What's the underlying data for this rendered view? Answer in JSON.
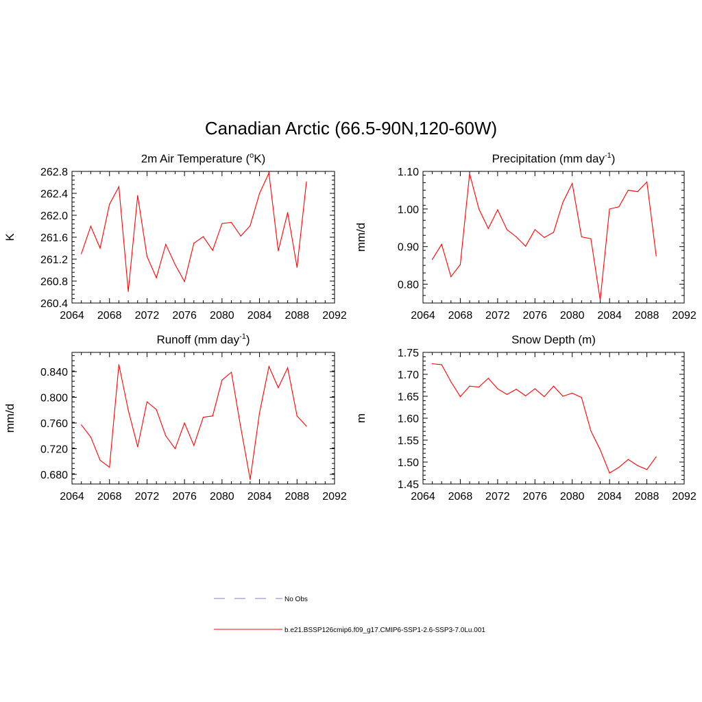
{
  "figure": {
    "title": "Canadian Arctic (66.5-90N,120-60W)"
  },
  "legend": {
    "items": [
      {
        "label": "No Obs",
        "color": "#9999dd",
        "style": "dashed"
      },
      {
        "label": "b.e21.BSSP126cmip6.f09_g17.CMIP6-SSP1-2.6-SSP3-7.0Lu.001",
        "color": "#ff0000",
        "style": "solid"
      }
    ]
  },
  "chart_data": [
    {
      "type": "line",
      "title": "2m Air Temperature (",
      "title_super": "o",
      "title_after": "K)",
      "title_super2": "",
      "title_end": "",
      "ylabel": "K",
      "xlim": [
        2064,
        2092
      ],
      "ylim": [
        260.4,
        262.8
      ],
      "xticks": [
        "2064",
        "2068",
        "2072",
        "2076",
        "2080",
        "2084",
        "2088",
        "2092"
      ],
      "yticks": [
        "260.4",
        "260.8",
        "261.2",
        "261.6",
        "262.0",
        "262.4",
        "262.8"
      ],
      "ytick_values": [
        260.4,
        260.8,
        261.2,
        261.6,
        262.0,
        262.4,
        262.8
      ],
      "series_color": "#ff0000",
      "x": [
        2065,
        2066,
        2067,
        2068,
        2069,
        2070,
        2071,
        2072,
        2073,
        2074,
        2075,
        2076,
        2077,
        2078,
        2079,
        2080,
        2081,
        2082,
        2083,
        2084,
        2085,
        2086,
        2087,
        2088,
        2089
      ],
      "y": [
        261.3,
        261.8,
        261.4,
        262.2,
        262.52,
        260.61,
        262.36,
        261.25,
        260.86,
        261.47,
        261.1,
        260.79,
        261.49,
        261.61,
        261.36,
        261.85,
        261.87,
        261.62,
        261.81,
        262.4,
        262.77,
        261.35,
        262.05,
        261.05,
        262.61
      ]
    },
    {
      "type": "line",
      "title": "Precipitation (mm day",
      "title_super": "-1",
      "title_after": ")",
      "ylabel": "mm/d",
      "xlim": [
        2064,
        2092
      ],
      "ylim": [
        0.75,
        1.1
      ],
      "xticks": [
        "2064",
        "2068",
        "2072",
        "2076",
        "2080",
        "2084",
        "2088",
        "2092"
      ],
      "yticks": [
        "0.80",
        "0.90",
        "1.00",
        "1.10"
      ],
      "ytick_values": [
        0.8,
        0.9,
        1.0,
        1.1
      ],
      "series_color": "#ff0000",
      "x": [
        2065,
        2066,
        2067,
        2068,
        2069,
        2070,
        2071,
        2072,
        2073,
        2074,
        2075,
        2076,
        2077,
        2078,
        2079,
        2080,
        2081,
        2082,
        2083,
        2084,
        2085,
        2086,
        2087,
        2088,
        2089
      ],
      "y": [
        0.866,
        0.906,
        0.82,
        0.852,
        1.094,
        1.0,
        0.948,
        0.998,
        0.945,
        0.926,
        0.901,
        0.945,
        0.924,
        0.938,
        1.018,
        1.068,
        0.926,
        0.921,
        0.758,
        1.0,
        1.006,
        1.05,
        1.046,
        1.072,
        0.875
      ]
    },
    {
      "type": "line",
      "title": "Runoff (mm day",
      "title_super": "-1",
      "title_after": ")",
      "ylabel": "mm/d",
      "xlim": [
        2064,
        2092
      ],
      "ylim": [
        0.665,
        0.87
      ],
      "xticks": [
        "2064",
        "2068",
        "2072",
        "2076",
        "2080",
        "2084",
        "2088",
        "2092"
      ],
      "yticks": [
        "0.680",
        "0.720",
        "0.760",
        "0.800",
        "0.840"
      ],
      "ytick_values": [
        0.68,
        0.72,
        0.76,
        0.8,
        0.84
      ],
      "series_color": "#ff0000",
      "x": [
        2065,
        2066,
        2067,
        2068,
        2069,
        2070,
        2071,
        2072,
        2073,
        2074,
        2075,
        2076,
        2077,
        2078,
        2079,
        2080,
        2081,
        2082,
        2083,
        2084,
        2085,
        2086,
        2087,
        2088,
        2089
      ],
      "y": [
        0.757,
        0.738,
        0.702,
        0.691,
        0.851,
        0.78,
        0.723,
        0.793,
        0.781,
        0.74,
        0.72,
        0.76,
        0.725,
        0.769,
        0.771,
        0.827,
        0.839,
        0.753,
        0.672,
        0.776,
        0.848,
        0.815,
        0.846,
        0.771,
        0.755
      ]
    },
    {
      "type": "line",
      "title": "Snow Depth (m)",
      "title_super": "",
      "title_after": "",
      "ylabel": "m",
      "xlim": [
        2064,
        2092
      ],
      "ylim": [
        1.45,
        1.75
      ],
      "xticks": [
        "2064",
        "2068",
        "2072",
        "2076",
        "2080",
        "2084",
        "2088",
        "2092"
      ],
      "yticks": [
        "1.45",
        "1.50",
        "1.55",
        "1.60",
        "1.65",
        "1.70",
        "1.75"
      ],
      "ytick_values": [
        1.45,
        1.5,
        1.55,
        1.6,
        1.65,
        1.7,
        1.75
      ],
      "series_color": "#ff0000",
      "x": [
        2065,
        2066,
        2067,
        2068,
        2069,
        2070,
        2071,
        2072,
        2073,
        2074,
        2075,
        2076,
        2077,
        2078,
        2079,
        2080,
        2081,
        2082,
        2083,
        2084,
        2085,
        2086,
        2087,
        2088,
        2089
      ],
      "y": [
        1.724,
        1.722,
        1.683,
        1.649,
        1.673,
        1.671,
        1.691,
        1.667,
        1.654,
        1.666,
        1.651,
        1.667,
        1.649,
        1.673,
        1.65,
        1.657,
        1.647,
        1.571,
        1.528,
        1.475,
        1.488,
        1.506,
        1.492,
        1.483,
        1.512
      ]
    }
  ]
}
